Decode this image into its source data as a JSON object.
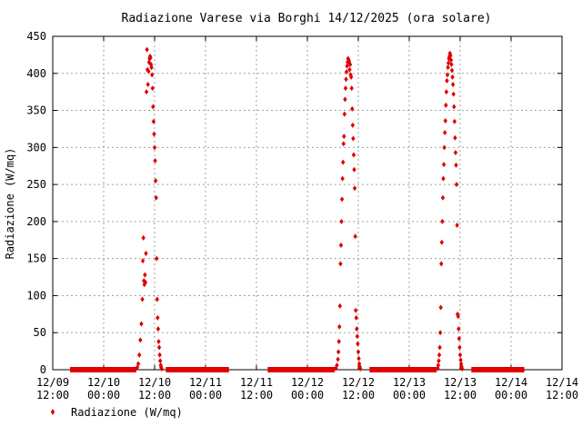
{
  "chart_data": {
    "type": "scatter",
    "title": "Radiazione Varese via Borghi 14/12/2025 (ora solare)",
    "ylabel": "Radiazione (W/mq)",
    "xlabel": "",
    "ylim": [
      0,
      450
    ],
    "y_ticks": [
      0,
      50,
      100,
      150,
      200,
      250,
      300,
      350,
      400,
      450
    ],
    "xlim": [
      0,
      5.0
    ],
    "x_ticks": [
      {
        "value": 0.0,
        "date": "12/09",
        "time": "12:00"
      },
      {
        "value": 0.5,
        "date": "12/10",
        "time": "00:00"
      },
      {
        "value": 1.0,
        "date": "12/10",
        "time": "12:00"
      },
      {
        "value": 1.5,
        "date": "12/11",
        "time": "00:00"
      },
      {
        "value": 2.0,
        "date": "12/11",
        "time": "12:00"
      },
      {
        "value": 2.5,
        "date": "12/12",
        "time": "00:00"
      },
      {
        "value": 3.0,
        "date": "12/12",
        "time": "12:00"
      },
      {
        "value": 3.5,
        "date": "12/13",
        "time": "00:00"
      },
      {
        "value": 4.0,
        "date": "12/13",
        "time": "12:00"
      },
      {
        "value": 4.5,
        "date": "12/14",
        "time": "00:00"
      },
      {
        "value": 5.0,
        "date": "12/14",
        "time": "12:00"
      }
    ],
    "grid": true,
    "legend": "bottom-left",
    "series": [
      {
        "name": "Radiazione (W/mq)",
        "color": "#e00000",
        "zero_segments": [
          [
            0.17,
            0.82
          ],
          [
            1.11,
            1.73
          ],
          [
            2.11,
            2.77
          ],
          [
            3.11,
            3.77
          ],
          [
            4.11,
            4.63
          ]
        ],
        "points": [
          [
            0.83,
            3
          ],
          [
            0.84,
            8
          ],
          [
            0.85,
            20
          ],
          [
            0.86,
            40
          ],
          [
            0.87,
            62
          ],
          [
            0.88,
            95
          ],
          [
            0.885,
            147
          ],
          [
            0.89,
            178
          ],
          [
            0.895,
            120
          ],
          [
            0.9,
            115
          ],
          [
            0.905,
            128
          ],
          [
            0.91,
            118
          ],
          [
            0.915,
            157
          ],
          [
            0.92,
            375
          ],
          [
            0.925,
            432
          ],
          [
            0.93,
            405
          ],
          [
            0.935,
            385
          ],
          [
            0.94,
            403
          ],
          [
            0.945,
            415
          ],
          [
            0.95,
            420
          ],
          [
            0.955,
            423
          ],
          [
            0.96,
            421
          ],
          [
            0.965,
            412
          ],
          [
            0.97,
            408
          ],
          [
            0.975,
            398
          ],
          [
            0.98,
            380
          ],
          [
            0.985,
            355
          ],
          [
            0.99,
            335
          ],
          [
            0.995,
            318
          ],
          [
            1.0,
            300
          ],
          [
            1.005,
            282
          ],
          [
            1.01,
            255
          ],
          [
            1.015,
            232
          ],
          [
            1.02,
            150
          ],
          [
            1.025,
            95
          ],
          [
            1.03,
            70
          ],
          [
            1.035,
            55
          ],
          [
            1.04,
            38
          ],
          [
            1.045,
            30
          ],
          [
            1.05,
            20
          ],
          [
            1.055,
            12
          ],
          [
            1.06,
            6
          ],
          [
            1.065,
            3
          ],
          [
            1.07,
            1
          ],
          [
            2.78,
            2
          ],
          [
            2.79,
            6
          ],
          [
            2.8,
            14
          ],
          [
            2.805,
            24
          ],
          [
            2.81,
            38
          ],
          [
            2.815,
            58
          ],
          [
            2.82,
            86
          ],
          [
            2.825,
            143
          ],
          [
            2.83,
            168
          ],
          [
            2.835,
            200
          ],
          [
            2.84,
            230
          ],
          [
            2.845,
            258
          ],
          [
            2.85,
            280
          ],
          [
            2.855,
            305
          ],
          [
            2.86,
            315
          ],
          [
            2.865,
            345
          ],
          [
            2.87,
            365
          ],
          [
            2.875,
            380
          ],
          [
            2.88,
            392
          ],
          [
            2.885,
            402
          ],
          [
            2.89,
            410
          ],
          [
            2.895,
            415
          ],
          [
            2.9,
            420
          ],
          [
            2.905,
            418
          ],
          [
            2.91,
            416
          ],
          [
            2.915,
            405
          ],
          [
            2.92,
            412
          ],
          [
            2.925,
            398
          ],
          [
            2.93,
            395
          ],
          [
            2.935,
            380
          ],
          [
            2.94,
            352
          ],
          [
            2.945,
            330
          ],
          [
            2.95,
            312
          ],
          [
            2.955,
            290
          ],
          [
            2.96,
            270
          ],
          [
            2.965,
            245
          ],
          [
            2.97,
            180
          ],
          [
            2.975,
            80
          ],
          [
            2.98,
            70
          ],
          [
            2.985,
            55
          ],
          [
            2.99,
            45
          ],
          [
            2.995,
            35
          ],
          [
            3.0,
            24
          ],
          [
            3.005,
            15
          ],
          [
            3.01,
            8
          ],
          [
            3.015,
            4
          ],
          [
            3.02,
            1
          ],
          [
            3.78,
            2
          ],
          [
            3.785,
            6
          ],
          [
            3.79,
            12
          ],
          [
            3.795,
            20
          ],
          [
            3.8,
            30
          ],
          [
            3.805,
            50
          ],
          [
            3.81,
            84
          ],
          [
            3.815,
            143
          ],
          [
            3.82,
            172
          ],
          [
            3.825,
            200
          ],
          [
            3.83,
            232
          ],
          [
            3.835,
            258
          ],
          [
            3.84,
            277
          ],
          [
            3.845,
            300
          ],
          [
            3.85,
            320
          ],
          [
            3.855,
            336
          ],
          [
            3.86,
            357
          ],
          [
            3.865,
            375
          ],
          [
            3.87,
            390
          ],
          [
            3.875,
            398
          ],
          [
            3.88,
            408
          ],
          [
            3.885,
            414
          ],
          [
            3.89,
            420
          ],
          [
            3.895,
            423
          ],
          [
            3.9,
            427
          ],
          [
            3.905,
            424
          ],
          [
            3.91,
            418
          ],
          [
            3.915,
            412
          ],
          [
            3.92,
            404
          ],
          [
            3.925,
            395
          ],
          [
            3.93,
            385
          ],
          [
            3.935,
            372
          ],
          [
            3.94,
            355
          ],
          [
            3.945,
            335
          ],
          [
            3.95,
            313
          ],
          [
            3.955,
            293
          ],
          [
            3.96,
            276
          ],
          [
            3.965,
            250
          ],
          [
            3.97,
            195
          ],
          [
            3.975,
            75
          ],
          [
            3.98,
            72
          ],
          [
            3.985,
            55
          ],
          [
            3.99,
            42
          ],
          [
            3.995,
            30
          ],
          [
            4.0,
            20
          ],
          [
            4.005,
            13
          ],
          [
            4.01,
            8
          ],
          [
            4.015,
            4
          ],
          [
            4.02,
            1
          ]
        ]
      }
    ]
  }
}
